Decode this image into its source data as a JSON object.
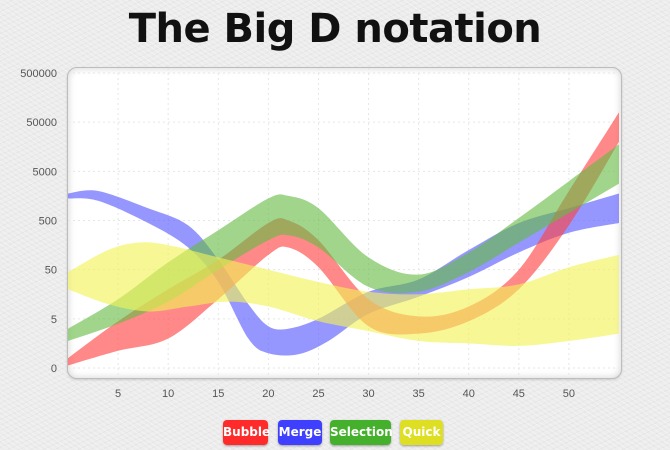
{
  "chart_data": {
    "type": "area",
    "title": "The Big D notation",
    "xlabel": "",
    "ylabel": "",
    "x_ticks": [
      5,
      10,
      15,
      20,
      25,
      30,
      35,
      40,
      45,
      50
    ],
    "y_ticks": [
      "0",
      "5",
      "50",
      "500",
      "5000",
      "50000",
      "500000"
    ],
    "xlim": [
      0,
      55
    ],
    "ylim_log_levels": [
      0,
      6
    ],
    "y_scale": "log",
    "grid": true,
    "legend_position": "bottom",
    "series": [
      {
        "name": "Bubble",
        "color": "#ff4040",
        "upper": [
          [
            0,
            0.2
          ],
          [
            5,
            0.95
          ],
          [
            10,
            1.6
          ],
          [
            15,
            2.2
          ],
          [
            20,
            2.95
          ],
          [
            22,
            3.0
          ],
          [
            25,
            2.6
          ],
          [
            30,
            1.4
          ],
          [
            35,
            1.05
          ],
          [
            40,
            1.25
          ],
          [
            45,
            2.0
          ],
          [
            50,
            3.6
          ],
          [
            55,
            5.2
          ]
        ],
        "lower": [
          [
            0,
            0.05
          ],
          [
            5,
            0.35
          ],
          [
            10,
            0.6
          ],
          [
            15,
            1.4
          ],
          [
            20,
            2.3
          ],
          [
            22,
            2.45
          ],
          [
            25,
            2.05
          ],
          [
            30,
            0.85
          ],
          [
            35,
            0.7
          ],
          [
            40,
            0.95
          ],
          [
            45,
            1.6
          ],
          [
            50,
            2.9
          ],
          [
            55,
            4.6
          ]
        ]
      },
      {
        "name": "Merge",
        "color": "#5555ff",
        "upper": [
          [
            0,
            3.55
          ],
          [
            3,
            3.6
          ],
          [
            8,
            3.25
          ],
          [
            12,
            2.9
          ],
          [
            15,
            2.2
          ],
          [
            18,
            1.3
          ],
          [
            20,
            0.85
          ],
          [
            22,
            0.8
          ],
          [
            25,
            1.0
          ],
          [
            30,
            1.55
          ],
          [
            35,
            1.8
          ],
          [
            40,
            2.4
          ],
          [
            45,
            2.95
          ],
          [
            50,
            3.25
          ],
          [
            55,
            3.55
          ]
        ],
        "lower": [
          [
            0,
            3.45
          ],
          [
            3,
            3.4
          ],
          [
            8,
            2.95
          ],
          [
            12,
            2.45
          ],
          [
            15,
            1.75
          ],
          [
            18,
            0.6
          ],
          [
            20,
            0.3
          ],
          [
            23,
            0.28
          ],
          [
            26,
            0.55
          ],
          [
            30,
            1.1
          ],
          [
            35,
            1.45
          ],
          [
            40,
            1.85
          ],
          [
            45,
            2.35
          ],
          [
            50,
            2.75
          ],
          [
            55,
            2.95
          ]
        ]
      },
      {
        "name": "Selection",
        "color": "#66bb44",
        "upper": [
          [
            0,
            0.8
          ],
          [
            5,
            1.4
          ],
          [
            10,
            2.15
          ],
          [
            15,
            2.8
          ],
          [
            20,
            3.45
          ],
          [
            22,
            3.5
          ],
          [
            25,
            3.25
          ],
          [
            30,
            2.25
          ],
          [
            35,
            1.9
          ],
          [
            40,
            2.35
          ],
          [
            45,
            3.05
          ],
          [
            50,
            3.8
          ],
          [
            55,
            4.55
          ]
        ],
        "lower": [
          [
            0,
            0.55
          ],
          [
            5,
            0.9
          ],
          [
            10,
            1.35
          ],
          [
            15,
            2.0
          ],
          [
            20,
            2.6
          ],
          [
            22,
            2.7
          ],
          [
            25,
            2.45
          ],
          [
            30,
            1.65
          ],
          [
            35,
            1.55
          ],
          [
            40,
            1.95
          ],
          [
            45,
            2.55
          ],
          [
            50,
            3.15
          ],
          [
            55,
            3.75
          ]
        ]
      },
      {
        "name": "Quick",
        "color": "#f2f255",
        "upper": [
          [
            0,
            1.95
          ],
          [
            4,
            2.4
          ],
          [
            7,
            2.55
          ],
          [
            10,
            2.5
          ],
          [
            15,
            2.25
          ],
          [
            20,
            2.0
          ],
          [
            25,
            1.75
          ],
          [
            30,
            1.55
          ],
          [
            35,
            1.5
          ],
          [
            40,
            1.6
          ],
          [
            45,
            1.7
          ],
          [
            50,
            2.05
          ],
          [
            55,
            2.3
          ]
        ],
        "lower": [
          [
            0,
            1.6
          ],
          [
            4,
            1.3
          ],
          [
            8,
            1.15
          ],
          [
            12,
            1.25
          ],
          [
            16,
            1.35
          ],
          [
            20,
            1.25
          ],
          [
            25,
            0.95
          ],
          [
            30,
            0.75
          ],
          [
            35,
            0.55
          ],
          [
            40,
            0.5
          ],
          [
            45,
            0.45
          ],
          [
            50,
            0.55
          ],
          [
            55,
            0.7
          ]
        ]
      }
    ]
  },
  "legend": {
    "items": [
      {
        "label": "Bubble",
        "color": "#ff2a2a"
      },
      {
        "label": "Merge",
        "color": "#3f3fff"
      },
      {
        "label": "Selection",
        "color": "#44b02c"
      },
      {
        "label": "Quick",
        "color": "#dede22"
      }
    ]
  }
}
